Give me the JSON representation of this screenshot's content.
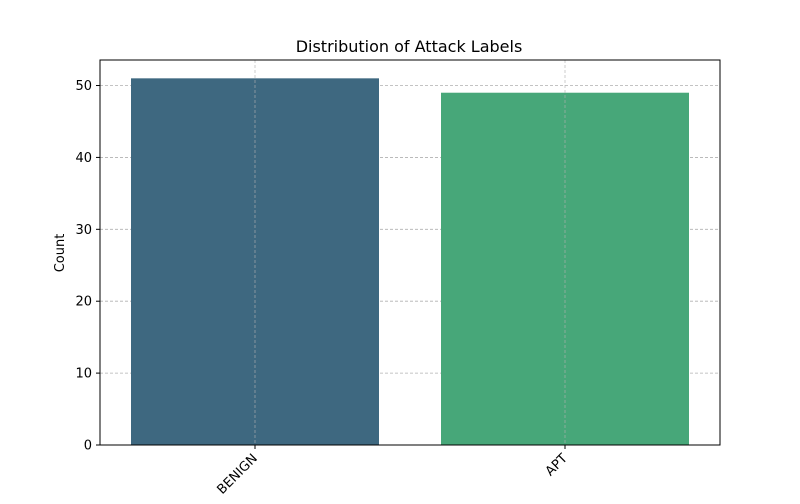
{
  "chart_data": {
    "type": "bar",
    "title": "Distribution of Attack Labels",
    "xlabel": "",
    "ylabel": "Count",
    "categories": [
      "BENIGN",
      "APT"
    ],
    "values": [
      51,
      49
    ],
    "ylim": [
      0,
      53.55
    ],
    "yticks": [
      0,
      10,
      20,
      30,
      40,
      50
    ],
    "grid": true,
    "bar_colors": [
      "#3e6880",
      "#47a779"
    ],
    "xtick_rotation_deg": 45
  }
}
